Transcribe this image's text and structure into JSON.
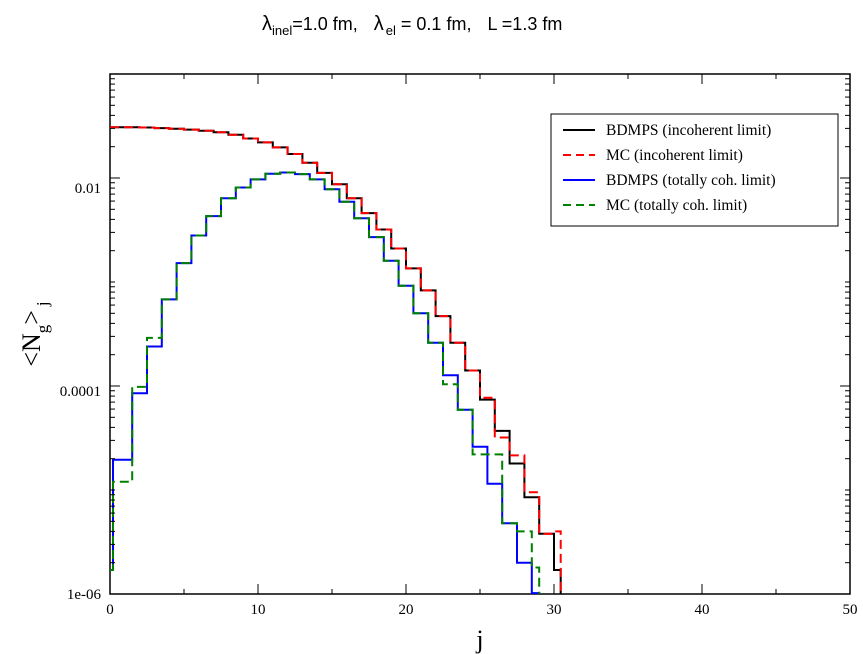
{
  "chart_data": {
    "type": "line",
    "title_parts": {
      "lambda_symbol": "λ",
      "inel_sub": "inel",
      "inel_value": "=1.0 fm,",
      "el_sub": "el",
      "el_value": " = 0.1 fm,",
      "L_label": "L  =1.3 fm"
    },
    "xlabel": "j",
    "ylabel_main": "<N",
    "ylabel_sub_g": "g",
    "ylabel_close": ">",
    "ylabel_sub_j": "j",
    "xlim": [
      0,
      50
    ],
    "ylim": [
      1e-06,
      0.1
    ],
    "yscale": "log",
    "x_ticks": [
      "0",
      "10",
      "20",
      "30",
      "40",
      "50"
    ],
    "y_ticks": [
      "1e-06",
      "0.0001",
      "0.01"
    ],
    "legend_position": "top-right",
    "colors": {
      "black": "#000000",
      "red": "#ff0000",
      "blue": "#0000ff",
      "green": "#008000"
    },
    "series": [
      {
        "name": "BDMPS (incoherent limit)",
        "color": "#000000",
        "dash": "solid",
        "steps": [
          [
            0,
            0.0308
          ],
          [
            1,
            0.0308
          ],
          [
            2,
            0.0306
          ],
          [
            3,
            0.0302
          ],
          [
            4,
            0.0298
          ],
          [
            5,
            0.0292
          ],
          [
            6,
            0.0285
          ],
          [
            7,
            0.0275
          ],
          [
            8,
            0.026
          ],
          [
            9,
            0.024
          ],
          [
            10,
            0.022
          ],
          [
            11,
            0.0197
          ],
          [
            12,
            0.017
          ],
          [
            13,
            0.014
          ],
          [
            14,
            0.0112
          ],
          [
            15,
            0.0087
          ],
          [
            16,
            0.0064
          ],
          [
            17,
            0.0046
          ],
          [
            18,
            0.0032
          ],
          [
            19,
            0.0021
          ],
          [
            20,
            0.00135
          ],
          [
            21,
            0.00083
          ],
          [
            22,
            0.00047
          ],
          [
            23,
            0.00026
          ],
          [
            24,
            0.000141
          ],
          [
            25,
            7.4e-05
          ],
          [
            26,
            3.7e-05
          ],
          [
            27,
            1.8e-05
          ],
          [
            28,
            8.5e-06
          ],
          [
            29,
            3.8e-06
          ],
          [
            30,
            1.7e-06
          ],
          [
            30.45,
            1e-06
          ]
        ]
      },
      {
        "name": "MC (incoherent limit)",
        "color": "#ff0000",
        "dash": "dashed",
        "steps": [
          [
            0,
            0.0308
          ],
          [
            1,
            0.0308
          ],
          [
            2,
            0.0306
          ],
          [
            3,
            0.0302
          ],
          [
            4,
            0.0298
          ],
          [
            5,
            0.0292
          ],
          [
            6,
            0.0285
          ],
          [
            7,
            0.0275
          ],
          [
            8,
            0.026
          ],
          [
            9,
            0.024
          ],
          [
            10,
            0.022
          ],
          [
            11,
            0.0197
          ],
          [
            12,
            0.017
          ],
          [
            13,
            0.014
          ],
          [
            14,
            0.0112
          ],
          [
            15,
            0.0087
          ],
          [
            16,
            0.0064
          ],
          [
            17,
            0.0046
          ],
          [
            18,
            0.0032
          ],
          [
            19,
            0.0021
          ],
          [
            20,
            0.00135
          ],
          [
            21,
            0.00083
          ],
          [
            22,
            0.00047
          ],
          [
            23,
            0.00026
          ],
          [
            24,
            0.000141
          ],
          [
            25,
            7.7e-05
          ],
          [
            26,
            3.2e-05
          ],
          [
            27,
            2.15e-05
          ],
          [
            28,
            9.5e-06
          ],
          [
            29,
            3.8e-06
          ],
          [
            30,
            4e-06
          ],
          [
            30.45,
            1e-06
          ]
        ]
      },
      {
        "name": "BDMPS (totally coh. limit)",
        "color": "#0000ff",
        "dash": "solid",
        "steps": [
          [
            0,
            1.7e-06
          ],
          [
            0.2,
            1.95e-05
          ],
          [
            1.5,
            8.5e-05
          ],
          [
            2.5,
            0.00024
          ],
          [
            3.5,
            0.00068
          ],
          [
            4.5,
            0.00152
          ],
          [
            5.5,
            0.0028
          ],
          [
            6.5,
            0.0043
          ],
          [
            7.5,
            0.0064
          ],
          [
            8.5,
            0.0081
          ],
          [
            9.5,
            0.0097
          ],
          [
            10.5,
            0.011
          ],
          [
            11.5,
            0.0113
          ],
          [
            12.5,
            0.0109
          ],
          [
            13.5,
            0.0097
          ],
          [
            14.5,
            0.0078
          ],
          [
            15.5,
            0.0059
          ],
          [
            16.5,
            0.0041
          ],
          [
            17.5,
            0.0027
          ],
          [
            18.5,
            0.0016
          ],
          [
            19.5,
            0.00092
          ],
          [
            20.5,
            0.0005
          ],
          [
            21.5,
            0.00026
          ],
          [
            22.5,
            0.000127
          ],
          [
            23.5,
            5.9e-05
          ],
          [
            24.5,
            2.6e-05
          ],
          [
            25.5,
            1.15e-05
          ],
          [
            26.5,
            4.8e-06
          ],
          [
            27.5,
            2e-06
          ],
          [
            28.5,
            1.02e-06
          ],
          [
            29,
            1e-06
          ]
        ]
      },
      {
        "name": "MC (totally coh. limit)",
        "color": "#008000",
        "dash": "dashed",
        "steps": [
          [
            0,
            1.7e-06
          ],
          [
            0.2,
            1.2e-05
          ],
          [
            1.5,
            9.8e-05
          ],
          [
            2.5,
            0.00029
          ],
          [
            3.5,
            0.00068
          ],
          [
            4.5,
            0.00152
          ],
          [
            5.5,
            0.0028
          ],
          [
            6.5,
            0.0043
          ],
          [
            7.5,
            0.0064
          ],
          [
            8.5,
            0.0081
          ],
          [
            9.5,
            0.0097
          ],
          [
            10.5,
            0.011
          ],
          [
            11.5,
            0.0113
          ],
          [
            12.5,
            0.0109
          ],
          [
            13.5,
            0.0097
          ],
          [
            14.5,
            0.0078
          ],
          [
            15.5,
            0.0059
          ],
          [
            16.5,
            0.0041
          ],
          [
            17.5,
            0.0027
          ],
          [
            18.5,
            0.0016
          ],
          [
            19.5,
            0.00092
          ],
          [
            20.5,
            0.0005
          ],
          [
            21.5,
            0.00026
          ],
          [
            22.5,
            0.000104
          ],
          [
            23.5,
            5.9e-05
          ],
          [
            24.5,
            2.2e-05
          ],
          [
            25.5,
            2.2e-05
          ],
          [
            26.5,
            4.8e-06
          ],
          [
            27.5,
            4e-06
          ],
          [
            28.5,
            1.8e-06
          ],
          [
            29,
            1e-06
          ]
        ]
      }
    ]
  }
}
